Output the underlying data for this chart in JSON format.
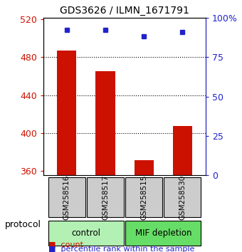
{
  "title": "GDS3626 / ILMN_1671791",
  "samples": [
    "GSM258516",
    "GSM258517",
    "GSM258515",
    "GSM258530"
  ],
  "counts": [
    487,
    465,
    371,
    407
  ],
  "percentiles": [
    92,
    92,
    88,
    91
  ],
  "groups": [
    {
      "label": "control",
      "indices": [
        0,
        1
      ],
      "color": "#b3f0b3"
    },
    {
      "label": "MIF depletion",
      "indices": [
        2,
        3
      ],
      "color": "#66dd66"
    }
  ],
  "bar_color": "#cc1100",
  "dot_color": "#2222cc",
  "ylim_left": [
    355,
    522
  ],
  "yticks_left": [
    360,
    400,
    440,
    480,
    520
  ],
  "ylim_right": [
    0,
    100
  ],
  "yticks_right": [
    0,
    25,
    50,
    75,
    100
  ],
  "ytick_labels_right": [
    "0",
    "25",
    "50",
    "75",
    "100%"
  ],
  "grid_values": [
    400,
    440,
    480
  ],
  "bar_width": 0.5,
  "bg_color": "#ffffff",
  "label_box_color": "#cccccc",
  "protocol_label": "protocol"
}
